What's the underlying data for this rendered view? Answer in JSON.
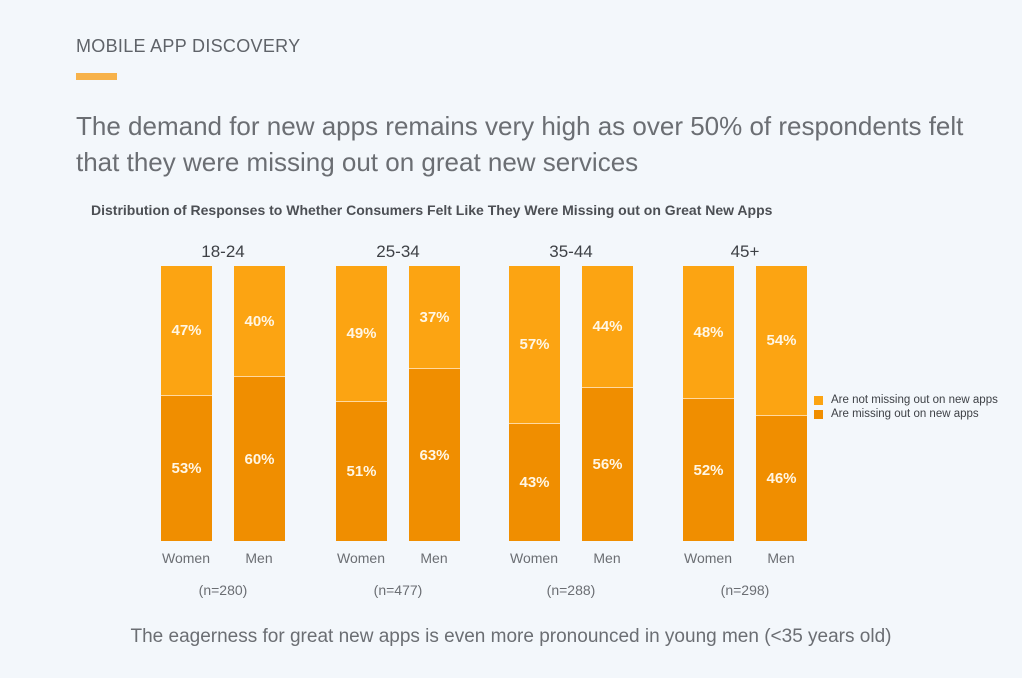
{
  "header": {
    "kicker": "MOBILE APP DISCOVERY",
    "headline": "The demand for new apps remains very high as over 50% of respondents felt that they were missing out on great new services"
  },
  "footnote": "The eagerness for great new apps is even more pronounced in young men (<35 years old)",
  "colors": {
    "not_missing": "#fca412",
    "missing": "#f08e00",
    "accent": "#f7b24a"
  },
  "chart_data": {
    "type": "bar",
    "stacked": true,
    "normalized": true,
    "title": "Distribution of Responses to Whether Consumers Felt Like They Were Missing out on Great New Apps",
    "legend": {
      "position": "right",
      "entries": [
        "Are not missing out on new apps",
        "Are missing out on new apps"
      ]
    },
    "groups": [
      {
        "label": "18-24",
        "n": "(n=280)",
        "bars": [
          {
            "category": "Women",
            "not_missing": 47,
            "missing": 53
          },
          {
            "category": "Men",
            "not_missing": 40,
            "missing": 60
          }
        ]
      },
      {
        "label": "25-34",
        "n": "(n=477)",
        "bars": [
          {
            "category": "Women",
            "not_missing": 49,
            "missing": 51
          },
          {
            "category": "Men",
            "not_missing": 37,
            "missing": 63
          }
        ]
      },
      {
        "label": "35-44",
        "n": "(n=288)",
        "bars": [
          {
            "category": "Women",
            "not_missing": 57,
            "missing": 43
          },
          {
            "category": "Men",
            "not_missing": 44,
            "missing": 56
          }
        ]
      },
      {
        "label": "45+",
        "n": "(n=298)",
        "bars": [
          {
            "category": "Women",
            "not_missing": 48,
            "missing": 52
          },
          {
            "category": "Men",
            "not_missing": 54,
            "missing": 46
          }
        ]
      }
    ],
    "ylim": [
      0,
      100
    ],
    "unit": "%"
  }
}
